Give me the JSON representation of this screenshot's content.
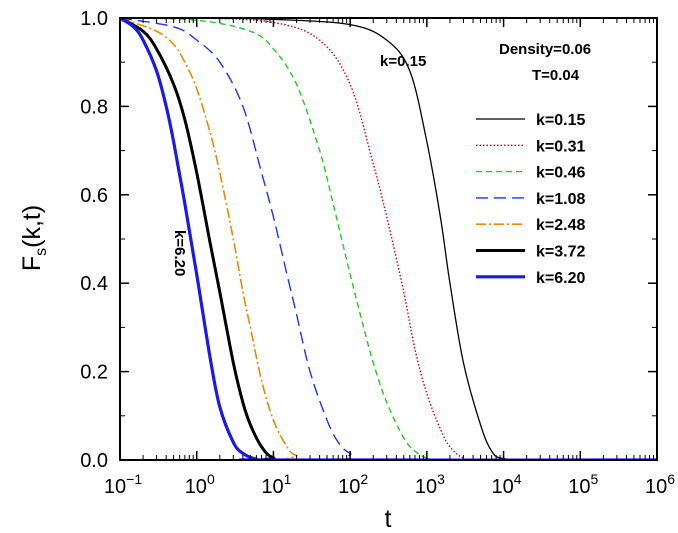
{
  "chart_data": {
    "type": "line",
    "title": "",
    "xlabel": "t",
    "ylabel_main": "F",
    "ylabel_sub": "s",
    "ylabel_rest": "(k,t)",
    "xscale": "log",
    "xlim": [
      0.1,
      1000000
    ],
    "ylim": [
      0.0,
      1.0
    ],
    "x_ticks": [
      {
        "mantissa": "10",
        "exp": "−1"
      },
      {
        "mantissa": "10",
        "exp": "0"
      },
      {
        "mantissa": "10",
        "exp": "1"
      },
      {
        "mantissa": "10",
        "exp": "2"
      },
      {
        "mantissa": "10",
        "exp": "3"
      },
      {
        "mantissa": "10",
        "exp": "4"
      },
      {
        "mantissa": "10",
        "exp": "5"
      },
      {
        "mantissa": "10",
        "exp": "6"
      }
    ],
    "y_ticks": [
      "0.0",
      "0.2",
      "0.4",
      "0.6",
      "0.8",
      "1.0"
    ],
    "grid": false,
    "legend_position": "right",
    "annotations": {
      "density": "Density=0.06",
      "temperature": "T=0.04",
      "curve_label_top": "k=0.15",
      "curve_label_left": "k=6.20"
    },
    "series": [
      {
        "name": "k=0.15",
        "color": "#000000",
        "dash": "",
        "width": 1.3,
        "points": [
          [
            0.1,
            1.0
          ],
          [
            1,
            1.0
          ],
          [
            10,
            0.997
          ],
          [
            100,
            0.985
          ],
          [
            300,
            0.95
          ],
          [
            600,
            0.88
          ],
          [
            1000,
            0.72
          ],
          [
            1500,
            0.55
          ],
          [
            2000,
            0.4
          ],
          [
            3000,
            0.22
          ],
          [
            5000,
            0.08
          ],
          [
            7000,
            0.02
          ],
          [
            10000,
            0.003
          ],
          [
            30000,
            0.0
          ],
          [
            1000000,
            0.0
          ]
        ]
      },
      {
        "name": "k=0.31",
        "color": "#e00000",
        "dash": "1.5,2",
        "width": 1.4,
        "points": [
          [
            0.1,
            1.0
          ],
          [
            1,
            1.0
          ],
          [
            10,
            0.99
          ],
          [
            40,
            0.95
          ],
          [
            100,
            0.85
          ],
          [
            200,
            0.67
          ],
          [
            300,
            0.55
          ],
          [
            500,
            0.38
          ],
          [
            700,
            0.25
          ],
          [
            1000,
            0.15
          ],
          [
            1500,
            0.07
          ],
          [
            2000,
            0.03
          ],
          [
            3000,
            0.005
          ],
          [
            6000,
            0.0
          ],
          [
            1000000,
            0.0
          ]
        ]
      },
      {
        "name": "k=0.46",
        "color": "#22cc22",
        "dash": "6,4",
        "width": 1.4,
        "points": [
          [
            0.1,
            1.0
          ],
          [
            1,
            0.995
          ],
          [
            5,
            0.97
          ],
          [
            10,
            0.93
          ],
          [
            20,
            0.85
          ],
          [
            40,
            0.7
          ],
          [
            60,
            0.58
          ],
          [
            100,
            0.42
          ],
          [
            150,
            0.3
          ],
          [
            200,
            0.22
          ],
          [
            300,
            0.13
          ],
          [
            500,
            0.05
          ],
          [
            700,
            0.02
          ],
          [
            1000,
            0.005
          ],
          [
            2000,
            0.0
          ],
          [
            1000000,
            0.0
          ]
        ]
      },
      {
        "name": "k=1.08",
        "color": "#1a33ff",
        "dash": "12,6",
        "width": 1.4,
        "points": [
          [
            0.1,
            1.0
          ],
          [
            0.5,
            0.98
          ],
          [
            1,
            0.95
          ],
          [
            2,
            0.9
          ],
          [
            4,
            0.8
          ],
          [
            7,
            0.65
          ],
          [
            10,
            0.55
          ],
          [
            15,
            0.42
          ],
          [
            20,
            0.33
          ],
          [
            30,
            0.2
          ],
          [
            50,
            0.09
          ],
          [
            70,
            0.04
          ],
          [
            100,
            0.015
          ],
          [
            200,
            0.0
          ],
          [
            1000000,
            0.0
          ]
        ]
      },
      {
        "name": "k=2.48",
        "color": "#ee8800",
        "dash": "10,3,2,3",
        "width": 1.6,
        "points": [
          [
            0.1,
            1.0
          ],
          [
            0.3,
            0.97
          ],
          [
            0.5,
            0.94
          ],
          [
            0.7,
            0.9
          ],
          [
            1,
            0.84
          ],
          [
            1.5,
            0.74
          ],
          [
            2,
            0.65
          ],
          [
            3,
            0.5
          ],
          [
            4,
            0.38
          ],
          [
            5,
            0.3
          ],
          [
            7,
            0.18
          ],
          [
            10,
            0.09
          ],
          [
            15,
            0.03
          ],
          [
            20,
            0.01
          ],
          [
            40,
            0.0
          ],
          [
            1000000,
            0.0
          ]
        ]
      },
      {
        "name": "k=3.72",
        "color": "#000000",
        "dash": "",
        "width": 3.0,
        "points": [
          [
            0.1,
            1.0
          ],
          [
            0.2,
            0.97
          ],
          [
            0.3,
            0.93
          ],
          [
            0.5,
            0.85
          ],
          [
            0.7,
            0.77
          ],
          [
            1,
            0.65
          ],
          [
            1.5,
            0.49
          ],
          [
            2,
            0.38
          ],
          [
            3,
            0.22
          ],
          [
            4,
            0.13
          ],
          [
            5,
            0.08
          ],
          [
            7,
            0.03
          ],
          [
            10,
            0.005
          ],
          [
            20,
            0.0
          ],
          [
            1000000,
            0.0
          ]
        ]
      },
      {
        "name": "k=6.20",
        "color": "#1a1ae6",
        "dash": "",
        "width": 3.2,
        "points": [
          [
            0.1,
            1.0
          ],
          [
            0.15,
            0.98
          ],
          [
            0.2,
            0.95
          ],
          [
            0.3,
            0.88
          ],
          [
            0.4,
            0.8
          ],
          [
            0.5,
            0.72
          ],
          [
            0.7,
            0.58
          ],
          [
            1,
            0.42
          ],
          [
            1.5,
            0.23
          ],
          [
            2,
            0.12
          ],
          [
            3,
            0.04
          ],
          [
            4,
            0.015
          ],
          [
            6,
            0.002
          ],
          [
            10,
            0.0
          ],
          [
            1000000,
            0.0
          ]
        ]
      }
    ]
  }
}
